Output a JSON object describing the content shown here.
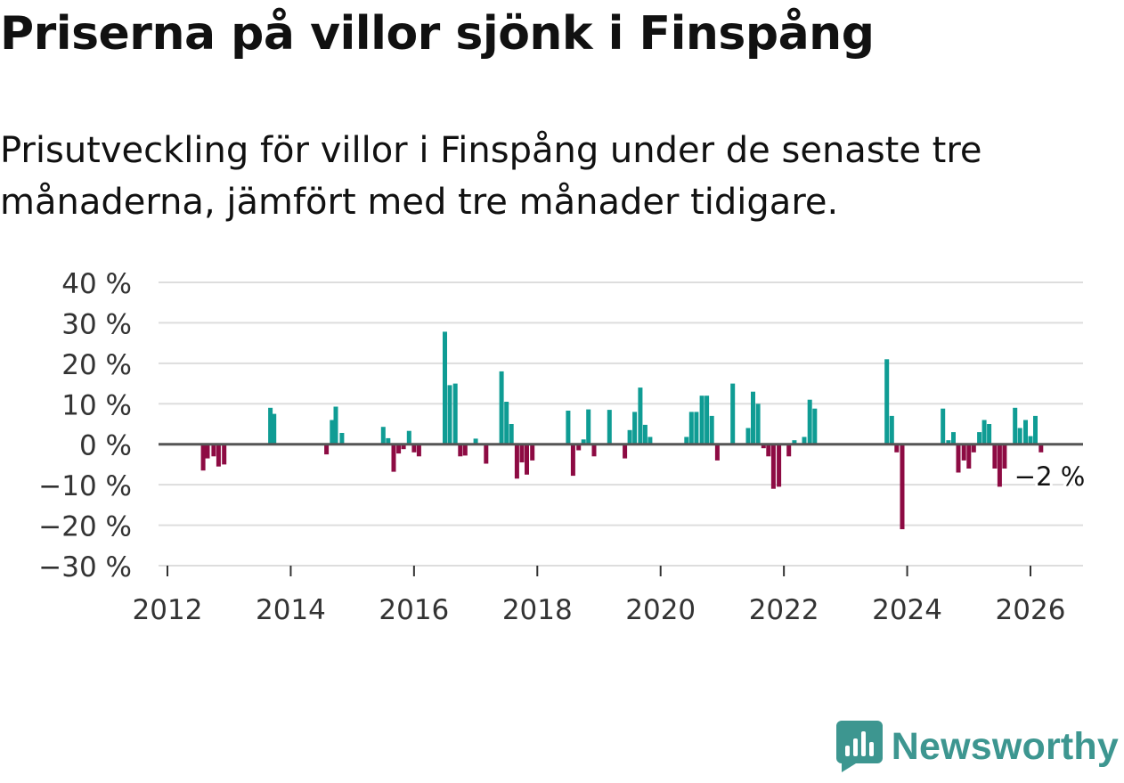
{
  "header": {
    "title": "Priserna på villor sjönk i Finspång",
    "subtitle": "Prisutveckling för villor i Finspång under de senaste tre månaderna, jämfört med tre månader tidigare."
  },
  "brand": {
    "name": "Newsworthy",
    "icon": "newsworthy-logo-icon",
    "color": "#3d9690"
  },
  "colors": {
    "positive": "#0f9c94",
    "negative": "#8d0b43",
    "grid": "#dddddd",
    "zero_line": "#555555",
    "axis_text": "#333333"
  },
  "chart_data": {
    "type": "bar",
    "title": "Priserna på villor sjönk i Finspång",
    "xlabel": "",
    "ylabel": "",
    "ylim": [
      -30,
      40
    ],
    "xlim": [
      2011.8,
      2026.85
    ],
    "y_ticks": [
      {
        "value": 40,
        "label": "40 %"
      },
      {
        "value": 30,
        "label": "30 %"
      },
      {
        "value": 20,
        "label": "20 %"
      },
      {
        "value": 10,
        "label": "10 %"
      },
      {
        "value": 0,
        "label": "0 %"
      },
      {
        "value": -10,
        "label": "−10 %"
      },
      {
        "value": -20,
        "label": "−20 %"
      },
      {
        "value": -30,
        "label": "−30 %"
      }
    ],
    "x_ticks": [
      {
        "value": 2012,
        "label": "2012"
      },
      {
        "value": 2014,
        "label": "2014"
      },
      {
        "value": 2016,
        "label": "2016"
      },
      {
        "value": 2018,
        "label": "2018"
      },
      {
        "value": 2020,
        "label": "2020"
      },
      {
        "value": 2022,
        "label": "2022"
      },
      {
        "value": 2024,
        "label": "2024"
      },
      {
        "value": 2026,
        "label": "2026"
      }
    ],
    "annotation": {
      "x": 2026.17,
      "y": -2,
      "label": "−2 %"
    },
    "series": [
      {
        "name": "Prisutveckling",
        "points": [
          {
            "x": 2012.58,
            "y": -6.5
          },
          {
            "x": 2012.65,
            "y": -3.5
          },
          {
            "x": 2012.75,
            "y": -3
          },
          {
            "x": 2012.83,
            "y": -5.5
          },
          {
            "x": 2012.92,
            "y": -5
          },
          {
            "x": 2013.67,
            "y": 9
          },
          {
            "x": 2013.73,
            "y": 7.5
          },
          {
            "x": 2014.58,
            "y": -2.5
          },
          {
            "x": 2014.67,
            "y": 6
          },
          {
            "x": 2014.73,
            "y": 9.3
          },
          {
            "x": 2014.83,
            "y": 2.8
          },
          {
            "x": 2015.5,
            "y": 4.3
          },
          {
            "x": 2015.58,
            "y": 1.5
          },
          {
            "x": 2015.67,
            "y": -6.8
          },
          {
            "x": 2015.75,
            "y": -2.3
          },
          {
            "x": 2015.83,
            "y": -1.2
          },
          {
            "x": 2015.92,
            "y": 3.3
          },
          {
            "x": 2016.0,
            "y": -2
          },
          {
            "x": 2016.08,
            "y": -3
          },
          {
            "x": 2016.5,
            "y": 27.8
          },
          {
            "x": 2016.58,
            "y": 14.6
          },
          {
            "x": 2016.67,
            "y": 15
          },
          {
            "x": 2016.75,
            "y": -3
          },
          {
            "x": 2016.83,
            "y": -2.8
          },
          {
            "x": 2017.0,
            "y": 1.4
          },
          {
            "x": 2017.17,
            "y": -4.8
          },
          {
            "x": 2017.42,
            "y": 18
          },
          {
            "x": 2017.5,
            "y": 10.5
          },
          {
            "x": 2017.58,
            "y": 5
          },
          {
            "x": 2017.67,
            "y": -8.5
          },
          {
            "x": 2017.75,
            "y": -4.5
          },
          {
            "x": 2017.83,
            "y": -7.5
          },
          {
            "x": 2017.92,
            "y": -4
          },
          {
            "x": 2018.5,
            "y": 8.3
          },
          {
            "x": 2018.58,
            "y": -7.8
          },
          {
            "x": 2018.67,
            "y": -1.5
          },
          {
            "x": 2018.75,
            "y": 1.2
          },
          {
            "x": 2018.83,
            "y": 8.6
          },
          {
            "x": 2018.92,
            "y": -3
          },
          {
            "x": 2019.17,
            "y": 8.5
          },
          {
            "x": 2019.42,
            "y": -3.5
          },
          {
            "x": 2019.5,
            "y": 3.5
          },
          {
            "x": 2019.58,
            "y": 8
          },
          {
            "x": 2019.67,
            "y": 14
          },
          {
            "x": 2019.75,
            "y": 4.8
          },
          {
            "x": 2019.83,
            "y": 1.8
          },
          {
            "x": 2020.42,
            "y": 1.8
          },
          {
            "x": 2020.5,
            "y": 8
          },
          {
            "x": 2020.58,
            "y": 8
          },
          {
            "x": 2020.67,
            "y": 12
          },
          {
            "x": 2020.75,
            "y": 12
          },
          {
            "x": 2020.83,
            "y": 7
          },
          {
            "x": 2020.92,
            "y": -4
          },
          {
            "x": 2021.17,
            "y": 15
          },
          {
            "x": 2021.42,
            "y": 4
          },
          {
            "x": 2021.5,
            "y": 13
          },
          {
            "x": 2021.58,
            "y": 10
          },
          {
            "x": 2021.67,
            "y": -1
          },
          {
            "x": 2021.75,
            "y": -3
          },
          {
            "x": 2021.83,
            "y": -11
          },
          {
            "x": 2021.92,
            "y": -10.5
          },
          {
            "x": 2022.08,
            "y": -3
          },
          {
            "x": 2022.17,
            "y": 1
          },
          {
            "x": 2022.33,
            "y": 1.8
          },
          {
            "x": 2022.42,
            "y": 11
          },
          {
            "x": 2022.5,
            "y": 8.8
          },
          {
            "x": 2023.67,
            "y": 21
          },
          {
            "x": 2023.75,
            "y": 7
          },
          {
            "x": 2023.83,
            "y": -2
          },
          {
            "x": 2023.92,
            "y": -21
          },
          {
            "x": 2024.58,
            "y": 8.8
          },
          {
            "x": 2024.67,
            "y": 1
          },
          {
            "x": 2024.75,
            "y": 3
          },
          {
            "x": 2024.83,
            "y": -7
          },
          {
            "x": 2024.92,
            "y": -4
          },
          {
            "x": 2025.0,
            "y": -6
          },
          {
            "x": 2025.08,
            "y": -2
          },
          {
            "x": 2025.17,
            "y": 3
          },
          {
            "x": 2025.25,
            "y": 6
          },
          {
            "x": 2025.33,
            "y": 5
          },
          {
            "x": 2025.42,
            "y": -6
          },
          {
            "x": 2025.5,
            "y": -10.5
          },
          {
            "x": 2025.58,
            "y": -6
          },
          {
            "x": 2025.75,
            "y": 9
          },
          {
            "x": 2025.83,
            "y": 4
          },
          {
            "x": 2025.92,
            "y": 6
          },
          {
            "x": 2026.0,
            "y": 2
          },
          {
            "x": 2026.08,
            "y": 7
          },
          {
            "x": 2026.17,
            "y": -2
          }
        ]
      }
    ]
  }
}
